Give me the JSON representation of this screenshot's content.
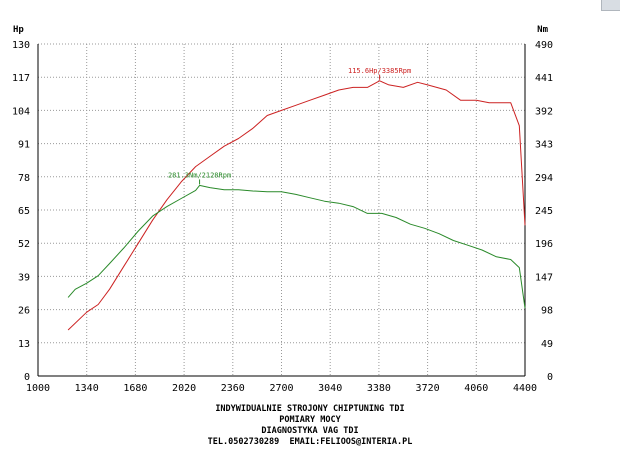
{
  "chart_data": {
    "type": "line",
    "left_unit": "Hp",
    "right_unit": "Nm",
    "x_ticks": [
      1000,
      1340,
      1680,
      2020,
      2360,
      2700,
      3040,
      3380,
      3720,
      4060,
      4400
    ],
    "y_left_ticks": [
      0,
      13,
      26,
      39,
      52,
      65,
      78,
      91,
      104,
      117,
      130
    ],
    "y_right_ticks": [
      0,
      49,
      98,
      147,
      196,
      245,
      294,
      343,
      392,
      441,
      490
    ],
    "xlim": [
      1000,
      4400
    ],
    "ylim_left": [
      0,
      130
    ],
    "ylim_right": [
      0,
      490
    ],
    "grid": true,
    "colors": {
      "power": "#cc2222",
      "torque": "#2a8a2a",
      "grid": "#9a9a9a"
    },
    "series": [
      {
        "axis": "left",
        "color": "#cc2222",
        "x": [
          1210,
          1340,
          1420,
          1500,
          1600,
          1700,
          1800,
          1900,
          2000,
          2100,
          2200,
          2300,
          2400,
          2500,
          2600,
          2700,
          2800,
          2900,
          3000,
          3100,
          3200,
          3300,
          3385,
          3450,
          3550,
          3650,
          3720,
          3850,
          3950,
          4060,
          4150,
          4230,
          4300,
          4360,
          4400
        ],
        "y": [
          18,
          25,
          28,
          34,
          43,
          52,
          61,
          69,
          76,
          82,
          86,
          90,
          93,
          97,
          102,
          104,
          106,
          108,
          110,
          112,
          113,
          113,
          115.6,
          114,
          113,
          115,
          114,
          112,
          108,
          108,
          107,
          107,
          107,
          98,
          59
        ]
      },
      {
        "axis": "right",
        "color": "#2a8a2a",
        "x": [
          1210,
          1260,
          1340,
          1420,
          1500,
          1600,
          1700,
          1800,
          1900,
          2000,
          2100,
          2128,
          2200,
          2300,
          2400,
          2500,
          2600,
          2700,
          2800,
          2900,
          3000,
          3100,
          3200,
          3300,
          3400,
          3500,
          3600,
          3700,
          3800,
          3900,
          4000,
          4100,
          4200,
          4300,
          4360,
          4400
        ],
        "y": [
          116,
          128,
          137,
          148,
          166,
          189,
          214,
          236,
          250,
          262,
          274,
          281.3,
          278,
          275,
          275,
          273,
          272,
          272,
          268,
          263,
          258,
          255,
          250,
          240,
          240,
          234,
          224,
          218,
          210,
          200,
          193,
          186,
          176,
          172,
          160,
          100
        ]
      }
    ],
    "annotations": [
      {
        "text": "115.6Hp/3385Rpm",
        "x": 3385,
        "y": 115.6,
        "axis": "left",
        "color": "#cc2222"
      },
      {
        "text": "281.3Nm/2128Rpm",
        "x": 2128,
        "y": 281.3,
        "axis": "right",
        "color": "#2a8a2a"
      }
    ]
  },
  "caption": [
    "INDYWIDUALNIE STROJONY CHIPTUNING TDI",
    "POMIARY MOCY",
    "DIAGNOSTYKA VAG TDI",
    "TEL.0502730289  EMAIL:FELIOOS@INTERIA.PL"
  ]
}
